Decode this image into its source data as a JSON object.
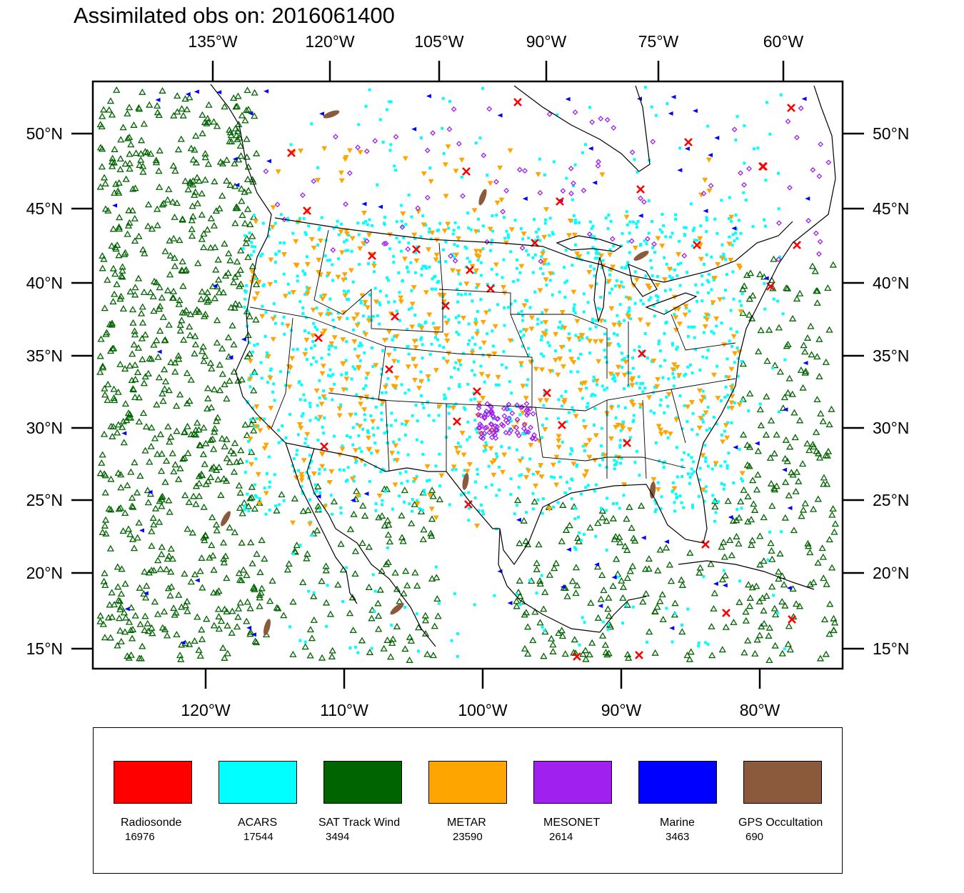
{
  "title": "Assimilated obs on: 2016061400",
  "axes": {
    "top_lon_labels": [
      "135°W",
      "120°W",
      "105°W",
      "90°W",
      "75°W",
      "60°W"
    ],
    "bottom_lon_labels": [
      "120°W",
      "110°W",
      "100°W",
      "90°W",
      "80°W"
    ],
    "lat_labels": [
      "50°N",
      "45°N",
      "40°N",
      "35°N",
      "30°N",
      "25°N",
      "20°N",
      "15°N"
    ]
  },
  "legend": [
    {
      "name": "Radiosonde",
      "count": "16976",
      "color": "#ff0000"
    },
    {
      "name": "ACARS",
      "count": "17544",
      "color": "#00ffff"
    },
    {
      "name": "SAT Track Wind",
      "count": "3494",
      "color": "#006400"
    },
    {
      "name": "METAR",
      "count": "23590",
      "color": "#ffa500"
    },
    {
      "name": "MESONET",
      "count": "2614",
      "color": "#a020f0"
    },
    {
      "name": "Marine",
      "count": "3463",
      "color": "#0000ff"
    },
    {
      "name": "GPS Occultation",
      "count": "690",
      "color": "#8b5a3c"
    }
  ]
}
